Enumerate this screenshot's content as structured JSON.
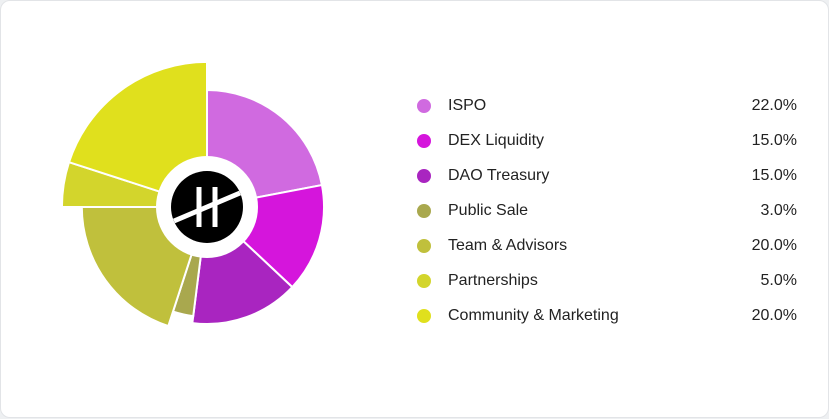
{
  "chart_data": {
    "type": "pie",
    "title": "",
    "slices": [
      {
        "label": "ISPO",
        "value": 22.0,
        "display": "22.0%",
        "color": "#d06ae0",
        "radius_scale": 1.0
      },
      {
        "label": "DEX Liquidity",
        "value": 15.0,
        "display": "15.0%",
        "color": "#d515dc",
        "radius_scale": 1.0
      },
      {
        "label": "DAO Treasury",
        "value": 15.0,
        "display": "15.0%",
        "color": "#a925c0",
        "radius_scale": 1.0
      },
      {
        "label": "Public Sale",
        "value": 3.0,
        "display": "3.0%",
        "color": "#a9a84e",
        "radius_scale": 0.94
      },
      {
        "label": "Team & Advisors",
        "value": 20.0,
        "display": "20.0%",
        "color": "#c0c03c",
        "radius_scale": 1.07
      },
      {
        "label": "Partnerships",
        "value": 5.0,
        "display": "5.0%",
        "color": "#d3d52c",
        "radius_scale": 1.24
      },
      {
        "label": "Community & Marketing",
        "value": 20.0,
        "display": "20.0%",
        "color": "#e0e01d",
        "radius_scale": 1.24
      }
    ],
    "legend": "right"
  },
  "center_logo": {
    "icon": "token-logo-icon",
    "color": "#000000"
  }
}
